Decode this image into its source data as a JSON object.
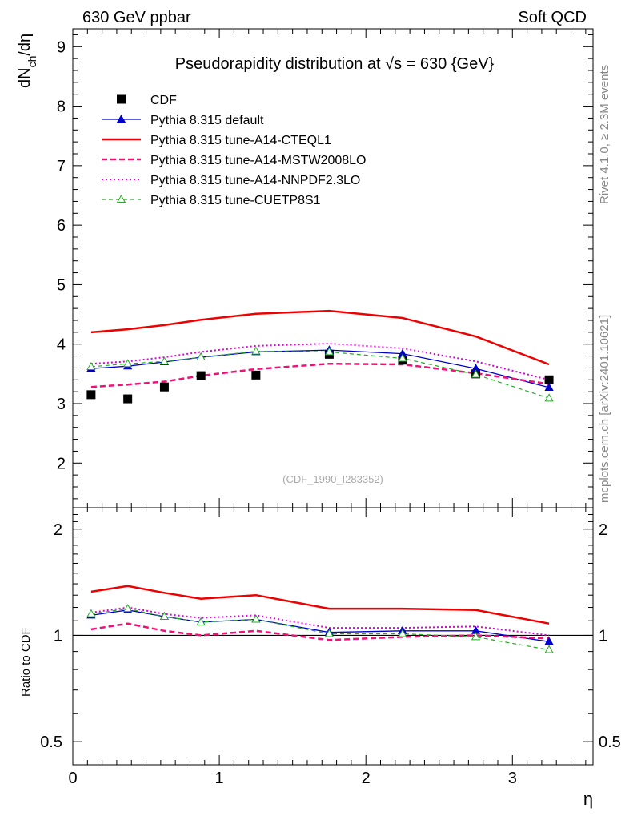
{
  "header": {
    "left": "630 GeV ppbar",
    "right": "Soft QCD"
  },
  "side_labels": {
    "rivet": "Rivet 4.1.0, ≥ 2.3M events",
    "mcplots": "mcplots.cern.ch [arXiv:2401.10621]"
  },
  "chart_data": {
    "type": "line",
    "title": "Pseudorapidity distribution at √s = 630 {GeV}",
    "watermark": "(CDF_1990_I283352)",
    "x": [
      0.125,
      0.375,
      0.625,
      0.875,
      1.25,
      1.75,
      2.25,
      2.75,
      3.25
    ],
    "xlabel": "η",
    "xlim": [
      0,
      3.55
    ],
    "xticks": [
      0,
      1,
      2,
      3
    ],
    "main": {
      "ylabel_pre": "dN",
      "ylabel_sub": "ch",
      "ylabel_post": "/dη",
      "ylim": [
        1.25,
        9.3
      ],
      "yticks": [
        2,
        3,
        4,
        5,
        6,
        7,
        8,
        9
      ],
      "data": {
        "name": "CDF",
        "values": [
          3.15,
          3.08,
          3.28,
          3.47,
          3.48,
          3.83,
          3.73,
          3.5,
          3.4
        ]
      },
      "series": [
        {
          "name": "Pythia 8.315 default",
          "color": "#0000cc",
          "values": [
            3.59,
            3.63,
            3.7,
            3.78,
            3.87,
            3.9,
            3.84,
            3.59,
            3.27
          ]
        },
        {
          "name": "Pythia 8.315 tune-A14-CTEQL1",
          "color": "#ee0000",
          "values": [
            4.2,
            4.25,
            4.32,
            4.41,
            4.51,
            4.56,
            4.44,
            4.13,
            3.66
          ]
        },
        {
          "name": "Pythia 8.315 tune-A14-MSTW2008LO",
          "color": "#ee1177",
          "values": [
            3.28,
            3.32,
            3.37,
            3.47,
            3.58,
            3.67,
            3.66,
            3.51,
            3.33
          ]
        },
        {
          "name": "Pythia 8.315 tune-A14-NNPDF2.3LO",
          "color": "#dd00dd",
          "values": [
            3.67,
            3.71,
            3.78,
            3.87,
            3.97,
            4.01,
            3.93,
            3.71,
            3.4
          ]
        },
        {
          "name": "Pythia 8.315 tune-CUETP8S1",
          "color": "#22aa22",
          "values": [
            3.62,
            3.67,
            3.71,
            3.78,
            3.88,
            3.87,
            3.76,
            3.49,
            3.09
          ]
        }
      ]
    },
    "ratio": {
      "ylabel": "Ratio to CDF",
      "ylim": [
        0.43,
        2.3
      ],
      "ytick_labels": [
        "0.5",
        "1",
        "2"
      ],
      "ytick_values": [
        0.5,
        1,
        2
      ],
      "series_values": [
        [
          1.14,
          1.18,
          1.13,
          1.09,
          1.11,
          1.02,
          1.03,
          1.03,
          0.96
        ],
        [
          1.33,
          1.38,
          1.32,
          1.27,
          1.3,
          1.19,
          1.19,
          1.18,
          1.08
        ],
        [
          1.04,
          1.08,
          1.03,
          1.0,
          1.03,
          0.97,
          0.99,
          1.0,
          0.98
        ],
        [
          1.16,
          1.2,
          1.15,
          1.12,
          1.14,
          1.05,
          1.05,
          1.06,
          1.0
        ],
        [
          1.15,
          1.19,
          1.13,
          1.09,
          1.11,
          1.01,
          1.01,
          0.99,
          0.91
        ]
      ]
    }
  }
}
